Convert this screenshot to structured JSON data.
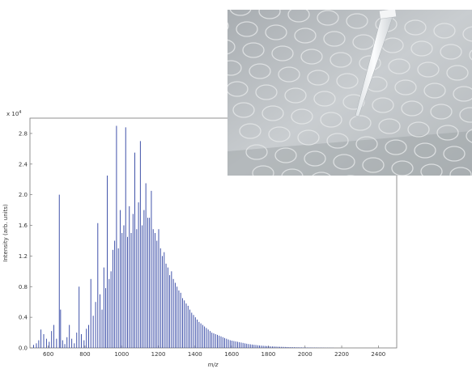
{
  "chart_data": {
    "type": "bar",
    "title": "",
    "xlabel": "m/z",
    "ylabel": "Intensity (arb. units)",
    "y_multiplier_label": "x 10",
    "y_multiplier_exponent": "4",
    "xlim": [
      500,
      2500
    ],
    "ylim": [
      0,
      3.0
    ],
    "x_ticks": [
      "600",
      "800",
      "1000",
      "1200",
      "1400",
      "1600",
      "1800",
      "2000",
      "2200",
      "2400"
    ],
    "y_ticks": [
      "0.0",
      "0.4",
      "0.8",
      "1.2",
      "1.6",
      "2.0",
      "2.4",
      "2.8"
    ],
    "grid": false,
    "series_color": "#2b3fa0",
    "peaks": [
      {
        "x": 520,
        "y": 0.04
      },
      {
        "x": 535,
        "y": 0.06
      },
      {
        "x": 548,
        "y": 0.1
      },
      {
        "x": 560,
        "y": 0.24
      },
      {
        "x": 575,
        "y": 0.18
      },
      {
        "x": 590,
        "y": 0.12
      },
      {
        "x": 605,
        "y": 0.08
      },
      {
        "x": 618,
        "y": 0.22
      },
      {
        "x": 630,
        "y": 0.3
      },
      {
        "x": 645,
        "y": 0.12
      },
      {
        "x": 660,
        "y": 2.0
      },
      {
        "x": 667,
        "y": 0.5
      },
      {
        "x": 678,
        "y": 0.1
      },
      {
        "x": 690,
        "y": 0.05
      },
      {
        "x": 702,
        "y": 0.14
      },
      {
        "x": 715,
        "y": 0.3
      },
      {
        "x": 728,
        "y": 0.12
      },
      {
        "x": 742,
        "y": 0.06
      },
      {
        "x": 755,
        "y": 0.2
      },
      {
        "x": 768,
        "y": 0.8
      },
      {
        "x": 780,
        "y": 0.18
      },
      {
        "x": 795,
        "y": 0.1
      },
      {
        "x": 808,
        "y": 0.25
      },
      {
        "x": 820,
        "y": 0.3
      },
      {
        "x": 832,
        "y": 0.9
      },
      {
        "x": 845,
        "y": 0.42
      },
      {
        "x": 858,
        "y": 0.6
      },
      {
        "x": 870,
        "y": 1.63
      },
      {
        "x": 882,
        "y": 0.7
      },
      {
        "x": 893,
        "y": 0.5
      },
      {
        "x": 903,
        "y": 1.05
      },
      {
        "x": 913,
        "y": 0.78
      },
      {
        "x": 922,
        "y": 2.25
      },
      {
        "x": 932,
        "y": 0.9
      },
      {
        "x": 942,
        "y": 1.0
      },
      {
        "x": 952,
        "y": 1.28
      },
      {
        "x": 962,
        "y": 1.4
      },
      {
        "x": 972,
        "y": 2.9
      },
      {
        "x": 982,
        "y": 1.3
      },
      {
        "x": 992,
        "y": 1.8
      },
      {
        "x": 1002,
        "y": 1.5
      },
      {
        "x": 1012,
        "y": 1.6
      },
      {
        "x": 1022,
        "y": 2.88
      },
      {
        "x": 1032,
        "y": 1.45
      },
      {
        "x": 1042,
        "y": 1.85
      },
      {
        "x": 1052,
        "y": 1.5
      },
      {
        "x": 1062,
        "y": 1.75
      },
      {
        "x": 1072,
        "y": 2.55
      },
      {
        "x": 1082,
        "y": 1.55
      },
      {
        "x": 1092,
        "y": 1.9
      },
      {
        "x": 1102,
        "y": 2.7
      },
      {
        "x": 1112,
        "y": 1.6
      },
      {
        "x": 1122,
        "y": 1.8
      },
      {
        "x": 1132,
        "y": 2.15
      },
      {
        "x": 1142,
        "y": 1.7
      },
      {
        "x": 1152,
        "y": 1.7
      },
      {
        "x": 1162,
        "y": 2.05
      },
      {
        "x": 1172,
        "y": 1.55
      },
      {
        "x": 1182,
        "y": 1.5
      },
      {
        "x": 1192,
        "y": 1.4
      },
      {
        "x": 1202,
        "y": 1.55
      },
      {
        "x": 1212,
        "y": 1.3
      },
      {
        "x": 1222,
        "y": 1.2
      },
      {
        "x": 1232,
        "y": 1.25
      },
      {
        "x": 1242,
        "y": 1.1
      },
      {
        "x": 1252,
        "y": 1.05
      },
      {
        "x": 1262,
        "y": 0.95
      },
      {
        "x": 1272,
        "y": 1.0
      },
      {
        "x": 1282,
        "y": 0.9
      },
      {
        "x": 1292,
        "y": 0.85
      },
      {
        "x": 1302,
        "y": 0.8
      },
      {
        "x": 1312,
        "y": 0.75
      },
      {
        "x": 1322,
        "y": 0.72
      },
      {
        "x": 1332,
        "y": 0.65
      },
      {
        "x": 1342,
        "y": 0.62
      },
      {
        "x": 1352,
        "y": 0.58
      },
      {
        "x": 1362,
        "y": 0.55
      },
      {
        "x": 1372,
        "y": 0.5
      },
      {
        "x": 1382,
        "y": 0.46
      },
      {
        "x": 1392,
        "y": 0.43
      },
      {
        "x": 1402,
        "y": 0.4
      },
      {
        "x": 1412,
        "y": 0.37
      },
      {
        "x": 1422,
        "y": 0.34
      },
      {
        "x": 1432,
        "y": 0.32
      },
      {
        "x": 1442,
        "y": 0.3
      },
      {
        "x": 1452,
        "y": 0.28
      },
      {
        "x": 1462,
        "y": 0.26
      },
      {
        "x": 1472,
        "y": 0.24
      },
      {
        "x": 1482,
        "y": 0.22
      },
      {
        "x": 1492,
        "y": 0.2
      },
      {
        "x": 1502,
        "y": 0.19
      },
      {
        "x": 1512,
        "y": 0.18
      },
      {
        "x": 1522,
        "y": 0.17
      },
      {
        "x": 1532,
        "y": 0.16
      },
      {
        "x": 1542,
        "y": 0.15
      },
      {
        "x": 1552,
        "y": 0.14
      },
      {
        "x": 1562,
        "y": 0.13
      },
      {
        "x": 1572,
        "y": 0.12
      },
      {
        "x": 1582,
        "y": 0.11
      },
      {
        "x": 1592,
        "y": 0.1
      },
      {
        "x": 1602,
        "y": 0.095
      },
      {
        "x": 1612,
        "y": 0.09
      },
      {
        "x": 1622,
        "y": 0.085
      },
      {
        "x": 1632,
        "y": 0.08
      },
      {
        "x": 1642,
        "y": 0.075
      },
      {
        "x": 1652,
        "y": 0.07
      },
      {
        "x": 1662,
        "y": 0.065
      },
      {
        "x": 1672,
        "y": 0.06
      },
      {
        "x": 1682,
        "y": 0.055
      },
      {
        "x": 1692,
        "y": 0.05
      },
      {
        "x": 1702,
        "y": 0.047
      },
      {
        "x": 1712,
        "y": 0.044
      },
      {
        "x": 1722,
        "y": 0.041
      },
      {
        "x": 1732,
        "y": 0.038
      },
      {
        "x": 1742,
        "y": 0.035
      },
      {
        "x": 1752,
        "y": 0.032
      },
      {
        "x": 1762,
        "y": 0.03
      },
      {
        "x": 1772,
        "y": 0.028
      },
      {
        "x": 1782,
        "y": 0.026
      },
      {
        "x": 1792,
        "y": 0.024
      },
      {
        "x": 1802,
        "y": 0.022
      },
      {
        "x": 1812,
        "y": 0.02
      },
      {
        "x": 1822,
        "y": 0.019
      },
      {
        "x": 1832,
        "y": 0.018
      },
      {
        "x": 1842,
        "y": 0.017
      },
      {
        "x": 1852,
        "y": 0.016
      },
      {
        "x": 1862,
        "y": 0.015
      },
      {
        "x": 1872,
        "y": 0.014
      },
      {
        "x": 1882,
        "y": 0.013
      },
      {
        "x": 1892,
        "y": 0.012
      },
      {
        "x": 1902,
        "y": 0.011
      },
      {
        "x": 1912,
        "y": 0.01
      },
      {
        "x": 1922,
        "y": 0.01
      },
      {
        "x": 1932,
        "y": 0.009
      },
      {
        "x": 1942,
        "y": 0.009
      },
      {
        "x": 1952,
        "y": 0.008
      },
      {
        "x": 1962,
        "y": 0.008
      },
      {
        "x": 1972,
        "y": 0.007
      },
      {
        "x": 1982,
        "y": 0.007
      },
      {
        "x": 1992,
        "y": 0.006
      },
      {
        "x": 2002,
        "y": 0.006
      },
      {
        "x": 2012,
        "y": 0.005
      },
      {
        "x": 2022,
        "y": 0.005
      },
      {
        "x": 2032,
        "y": 0.005
      },
      {
        "x": 2042,
        "y": 0.004
      },
      {
        "x": 2052,
        "y": 0.004
      },
      {
        "x": 2062,
        "y": 0.004
      },
      {
        "x": 2072,
        "y": 0.003
      },
      {
        "x": 2082,
        "y": 0.003
      },
      {
        "x": 2092,
        "y": 0.003
      },
      {
        "x": 2102,
        "y": 0.003
      },
      {
        "x": 2112,
        "y": 0.002
      },
      {
        "x": 2122,
        "y": 0.002
      },
      {
        "x": 2132,
        "y": 0.002
      },
      {
        "x": 2142,
        "y": 0.002
      },
      {
        "x": 2152,
        "y": 0.002
      }
    ]
  },
  "photo": {
    "plate_color": "#bfc3c6",
    "shadow_color": "#8e9396",
    "spot_ring_color": "#e4e6e8",
    "pipette_color": "#eef0f2"
  }
}
